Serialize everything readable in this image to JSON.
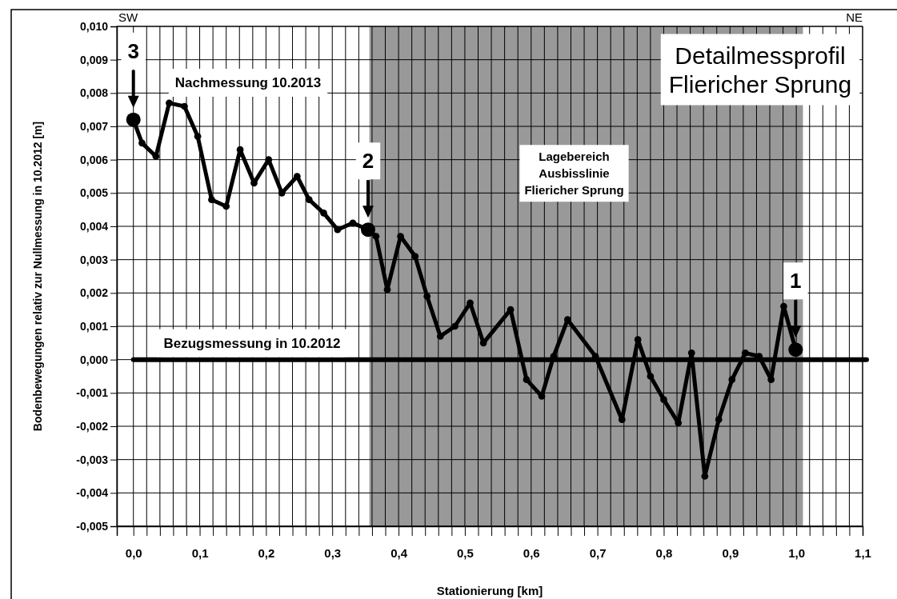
{
  "chart_data": {
    "type": "line",
    "title": "Detailmessprofil\nFliericher Sprung",
    "xlabel": "Stationierung [km]",
    "ylabel": "Bodenbewegungen relativ zur Nullmessung in 10.2012 [m]",
    "xlim": [
      -0.025,
      1.1
    ],
    "xticks": [
      {
        "value": 0,
        "label": "0,0"
      },
      {
        "value": 0.02,
        "label": null
      },
      {
        "value": 0.04,
        "label": null
      },
      {
        "value": 0.06,
        "label": null
      },
      {
        "value": 0.08,
        "label": null
      },
      {
        "value": 0.1,
        "label": "0,1"
      },
      {
        "value": 0.12,
        "label": null
      },
      {
        "value": 0.14,
        "label": null
      },
      {
        "value": 0.16,
        "label": null
      },
      {
        "value": 0.18,
        "label": null
      },
      {
        "value": 0.2,
        "label": "0,2"
      },
      {
        "value": 0.22,
        "label": null
      },
      {
        "value": 0.24,
        "label": null
      },
      {
        "value": 0.26,
        "label": null
      },
      {
        "value": 0.28,
        "label": null
      },
      {
        "value": 0.3,
        "label": "0,3"
      },
      {
        "value": 0.32,
        "label": null
      },
      {
        "value": 0.34,
        "label": null
      },
      {
        "value": 0.36,
        "label": null
      },
      {
        "value": 0.38,
        "label": null
      },
      {
        "value": 0.4,
        "label": "0,4"
      },
      {
        "value": 0.42,
        "label": null
      },
      {
        "value": 0.44,
        "label": null
      },
      {
        "value": 0.46,
        "label": null
      },
      {
        "value": 0.48,
        "label": null
      },
      {
        "value": 0.5,
        "label": "0,5"
      },
      {
        "value": 0.52,
        "label": null
      },
      {
        "value": 0.54,
        "label": null
      },
      {
        "value": 0.56,
        "label": null
      },
      {
        "value": 0.58,
        "label": null
      },
      {
        "value": 0.6,
        "label": "0,6"
      },
      {
        "value": 0.62,
        "label": null
      },
      {
        "value": 0.64,
        "label": null
      },
      {
        "value": 0.66,
        "label": null
      },
      {
        "value": 0.68,
        "label": null
      },
      {
        "value": 0.7,
        "label": "0,7"
      },
      {
        "value": 0.72,
        "label": null
      },
      {
        "value": 0.74,
        "label": null
      },
      {
        "value": 0.76,
        "label": null
      },
      {
        "value": 0.78,
        "label": null
      },
      {
        "value": 0.8,
        "label": "0,8"
      },
      {
        "value": 0.82,
        "label": null
      },
      {
        "value": 0.84,
        "label": null
      },
      {
        "value": 0.86,
        "label": null
      },
      {
        "value": 0.88,
        "label": null
      },
      {
        "value": 0.9,
        "label": "0,9"
      },
      {
        "value": 0.92,
        "label": null
      },
      {
        "value": 0.94,
        "label": null
      },
      {
        "value": 0.96,
        "label": null
      },
      {
        "value": 0.98,
        "label": null
      },
      {
        "value": 1.0,
        "label": "1,0"
      },
      {
        "value": 1.02,
        "label": null
      },
      {
        "value": 1.04,
        "label": null
      },
      {
        "value": 1.06,
        "label": null
      },
      {
        "value": 1.08,
        "label": null
      },
      {
        "value": 1.1,
        "label": "1,1"
      }
    ],
    "ylim": [
      -0.005,
      0.01
    ],
    "yticks": [
      {
        "value": -0.005,
        "label": "-0,005"
      },
      {
        "value": -0.004,
        "label": "-0,004"
      },
      {
        "value": -0.003,
        "label": "-0,003"
      },
      {
        "value": -0.002,
        "label": "-0,002"
      },
      {
        "value": -0.001,
        "label": "-0,001"
      },
      {
        "value": 0,
        "label": "0,000"
      },
      {
        "value": 0.001,
        "label": "0,001"
      },
      {
        "value": 0.002,
        "label": "0,002"
      },
      {
        "value": 0.003,
        "label": "0,003"
      },
      {
        "value": 0.004,
        "label": "0,004"
      },
      {
        "value": 0.005,
        "label": "0,005"
      },
      {
        "value": 0.006,
        "label": "0,006"
      },
      {
        "value": 0.007,
        "label": "0,007"
      },
      {
        "value": 0.008,
        "label": "0,008"
      },
      {
        "value": 0.009,
        "label": "0,009"
      },
      {
        "value": 0.01,
        "label": "0,010"
      }
    ],
    "grid": true,
    "marker": "circle",
    "line_style": "solid",
    "series": [
      {
        "name": "Nachmessung 10.2013",
        "color": "#000000",
        "x": [
          0.0,
          0.013,
          0.034,
          0.054,
          0.077,
          0.097,
          0.118,
          0.14,
          0.161,
          0.182,
          0.204,
          0.224,
          0.247,
          0.265,
          0.287,
          0.308,
          0.331,
          0.354,
          0.366,
          0.383,
          0.403,
          0.425,
          0.443,
          0.463,
          0.485,
          0.508,
          0.528,
          0.569,
          0.593,
          0.616,
          0.634,
          0.655,
          0.697,
          0.737,
          0.761,
          0.78,
          0.8,
          0.822,
          0.842,
          0.862,
          0.883,
          0.903,
          0.923,
          0.944,
          0.962,
          0.981,
          0.999
        ],
        "values": [
          0.0072,
          0.0065,
          0.0061,
          0.0077,
          0.0076,
          0.0067,
          0.0048,
          0.0046,
          0.0063,
          0.0053,
          0.006,
          0.005,
          0.0055,
          0.0048,
          0.0044,
          0.0039,
          0.0041,
          0.0039,
          0.0037,
          0.0021,
          0.0037,
          0.0031,
          0.0019,
          0.0007,
          0.001,
          0.0017,
          0.0005,
          0.0015,
          -0.0006,
          -0.0011,
          0.0001,
          0.0012,
          0.0001,
          -0.0018,
          0.0006,
          -0.0005,
          -0.0012,
          -0.0019,
          0.0002,
          -0.0035,
          -0.0018,
          -0.0006,
          0.0002,
          0.0001,
          -0.0006,
          0.0016,
          0.0003
        ]
      }
    ],
    "ref_lines": [
      {
        "axis": "y",
        "value": 0,
        "label": "Bezugsmessung in 10.2012",
        "color": "#000000"
      }
    ],
    "bands": [
      {
        "axis": "x",
        "from": 0.356,
        "to": 1.01,
        "label": "Lagebereich\nAusbisslinie\nFliericher Sprung",
        "color": "#999999"
      }
    ],
    "annotations": [
      "SW",
      "NE",
      {
        "text": "3",
        "x": 0.0,
        "y": 0.0072
      },
      {
        "text": "2",
        "x": 0.354,
        "y": 0.0039
      },
      {
        "text": "1",
        "x": 0.999,
        "y": 0.0003
      }
    ]
  }
}
